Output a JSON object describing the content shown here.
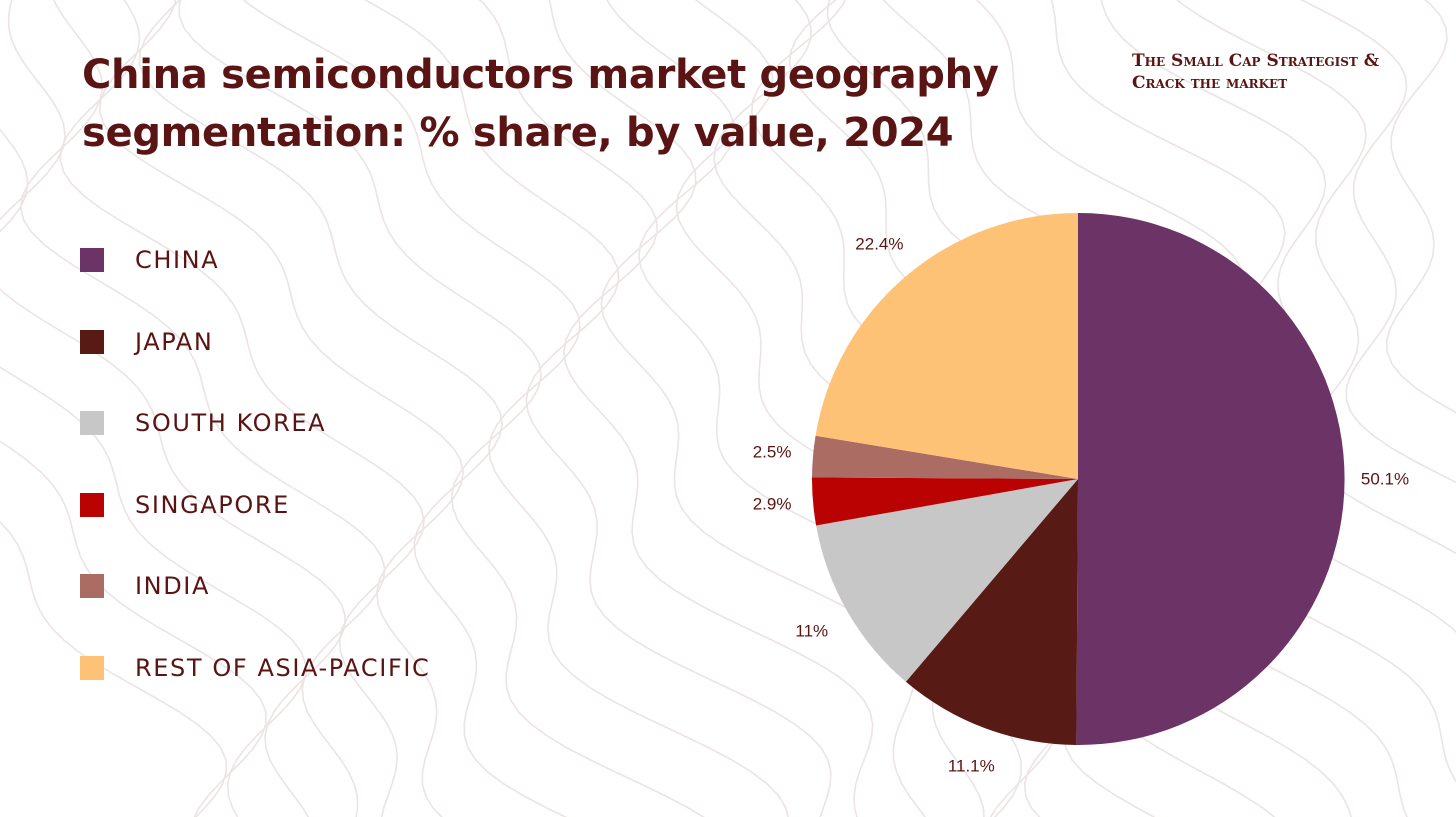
{
  "title": {
    "line1": "China semiconductors market geography",
    "line2": "segmentation: % share, by value, 2024"
  },
  "brand": {
    "line1": "The Small Cap Strategist &",
    "line2": "Crack the market"
  },
  "colors": {
    "title": "#5a1414",
    "background": "#ffffff",
    "contour": "#ece3e3"
  },
  "chart_data": {
    "type": "pie",
    "title": "China semiconductors market geography segmentation: % share, by value, 2024",
    "legend_position": "left",
    "start": "top",
    "direction": "clockwise",
    "slices": [
      {
        "key": "china",
        "label": "CHINA",
        "value": 50.1,
        "value_label": "50.1%",
        "color": "#6b3366"
      },
      {
        "key": "japan",
        "label": "JAPAN",
        "value": 11.1,
        "value_label": "11.1%",
        "color": "#581a15"
      },
      {
        "key": "south-korea",
        "label": "SOUTH KOREA",
        "value": 11,
        "value_label": "11%",
        "color": "#c7c7c7"
      },
      {
        "key": "singapore",
        "label": "SINGAPORE",
        "value": 2.9,
        "value_label": "2.9%",
        "color": "#bb0202"
      },
      {
        "key": "india",
        "label": "INDIA",
        "value": 2.5,
        "value_label": "2.5%",
        "color": "#ab6c64"
      },
      {
        "key": "rest-of-asia-pacific",
        "label": "REST OF ASIA-PACIFIC",
        "value": 22.4,
        "value_label": "22.4%",
        "color": "#fdc275"
      }
    ]
  }
}
